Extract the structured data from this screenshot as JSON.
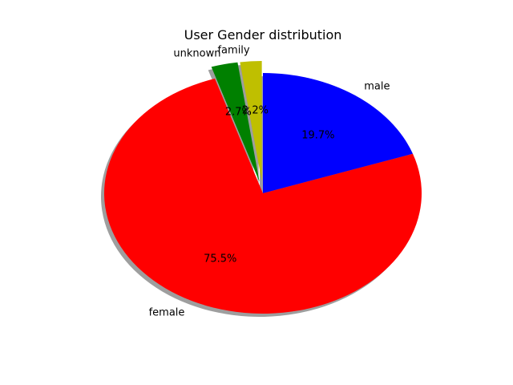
{
  "chart_data": {
    "type": "pie",
    "title": "User Gender distribution",
    "labels": [
      "male",
      "female",
      "unknown",
      "family"
    ],
    "values": [
      19.7,
      75.5,
      2.7,
      2.2
    ],
    "percent_labels": [
      "19.7%",
      "75.5%",
      "2.7%",
      "2.2%"
    ],
    "colors": [
      "#0000ff",
      "#ff0000",
      "#008000",
      "#bfbf00"
    ],
    "exploded": [
      false,
      false,
      true,
      true
    ],
    "shadow": true,
    "start": "male slice begins at the top, slices proceed clockwise"
  }
}
